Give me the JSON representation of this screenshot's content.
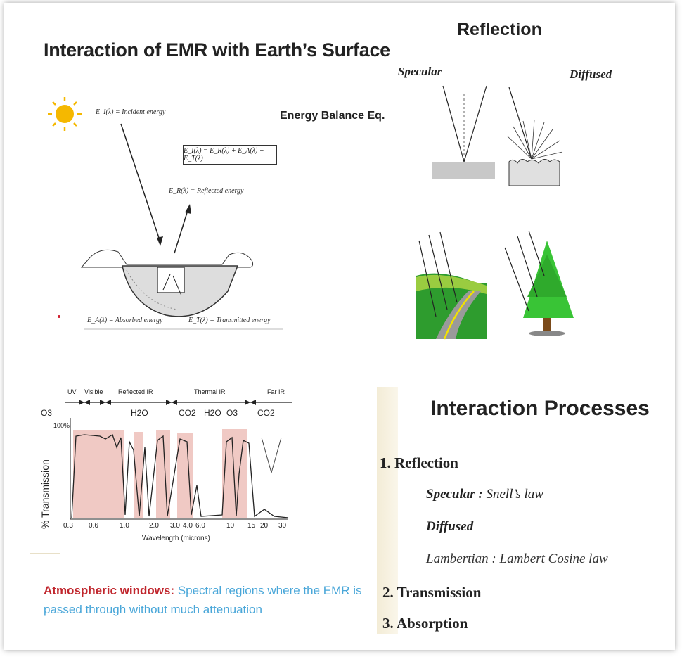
{
  "slide": {
    "title": "Interaction of EMR with Earth’s Surface",
    "reflection_title": "Reflection",
    "specular_label": "Specular",
    "diffused_label": "Diffused"
  },
  "energy_diagram": {
    "heading": "Energy Balance Eq.",
    "equation": "E_I(λ) = E_R(λ) + E_A(λ) + E_T(λ)",
    "incident": "E_I(λ) = Incident energy",
    "reflected": "E_R(λ) = Reflected energy",
    "absorbed": "E_A(λ) = Absorbed energy",
    "transmitted": "E_T(λ) = Transmitted energy"
  },
  "spectrum_chart": {
    "bands": [
      "UV",
      "Visible",
      "Reflected IR",
      "Thermal IR",
      "Far IR"
    ],
    "gases": [
      "O3",
      "H2O",
      "CO2",
      "H2O",
      "O3",
      "CO2"
    ],
    "ylabel": "% Transmission",
    "ytick": "100%",
    "xlabel": "Wavelength (microns)",
    "xticks": [
      "0.3",
      "0.6",
      "1.0",
      "2.0",
      "3.0",
      "4.0",
      "6.0",
      "10",
      "15",
      "20",
      "30"
    ]
  },
  "atmospheric": {
    "term": "Atmospheric windows:",
    "definition": "Spectral regions where the EMR is passed through without much attenuation"
  },
  "processes": {
    "title": "Interaction Processes",
    "item1": "1. Reflection",
    "specular_term": "Specular :",
    "specular_law": "Snell’s law",
    "diffused": "Diffused",
    "lambertian": "Lambertian : Lambert Cosine law",
    "item2": "2. Transmission",
    "item3": "3. Absorption"
  },
  "colors": {
    "window_fill": "#f0c9c4",
    "term_red": "#c0262d",
    "def_blue": "#4aa7d9",
    "tree_green": "#39c436",
    "sun_yellow": "#f5b800"
  }
}
